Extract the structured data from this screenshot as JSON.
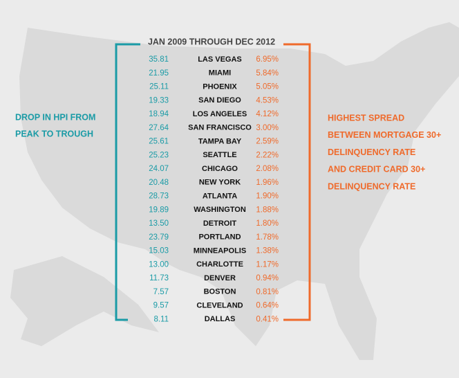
{
  "title": "JAN 2009 THROUGH DEC 2012",
  "left_label": {
    "lines": [
      "DROP IN HPI FROM",
      "PEAK TO TROUGH"
    ]
  },
  "right_label": {
    "lines": [
      "HIGHEST SPREAD",
      "BETWEEN MORTGAGE 30+",
      "DELINQUENCY RATE",
      "AND CREDIT CARD 30+",
      "DELINQUENCY RATE"
    ]
  },
  "table": {
    "rows": [
      [
        "35.81",
        "LAS VEGAS",
        "6.95%"
      ],
      [
        "21.95",
        "MIAMI",
        "5.84%"
      ],
      [
        "25.11",
        "PHOENIX",
        "5.05%"
      ],
      [
        "19.33",
        "SAN DIEGO",
        "4.53%"
      ],
      [
        "18.94",
        "LOS ANGELES",
        "4.12%"
      ],
      [
        "27.64",
        "SAN FRANCISCO",
        "3.00%"
      ],
      [
        "25.61",
        "TAMPA BAY",
        "2.59%"
      ],
      [
        "25.23",
        "SEATTLE",
        "2.22%"
      ],
      [
        "24.07",
        "CHICAGO",
        "2.08%"
      ],
      [
        "20.48",
        "NEW YORK",
        "1.96%"
      ],
      [
        "28.73",
        "ATLANTA",
        "1.90%"
      ],
      [
        "19.89",
        "WASHINGTON",
        "1.88%"
      ],
      [
        "13.50",
        "DETROIT",
        "1.80%"
      ],
      [
        "23.79",
        "PORTLAND",
        "1.78%"
      ],
      [
        "15.03",
        "MINNEAPOLIS",
        "1.38%"
      ],
      [
        "13.00",
        "CHARLOTTE",
        "1.17%"
      ],
      [
        "11.73",
        "DENVER",
        "0.94%"
      ],
      [
        "7.57",
        "BOSTON",
        "0.81%"
      ],
      [
        "9.57",
        "CLEVELAND",
        "0.64%"
      ],
      [
        "8.11",
        "DALLAS",
        "0.41%"
      ]
    ]
  }
}
